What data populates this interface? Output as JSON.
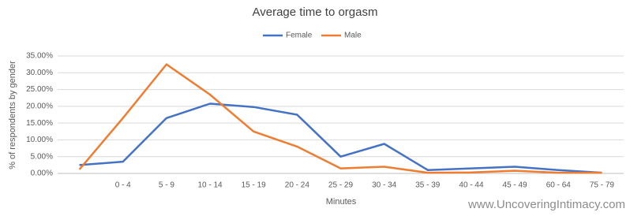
{
  "chart_data": {
    "type": "line",
    "title": "Average time to orgasm",
    "x_label": "Minutes",
    "y_label": "% of respondents by gender",
    "watermark": "www.UncoveringIntimacy.com",
    "categories": [
      null,
      "0 - 4",
      "5 - 9",
      "10 - 14",
      "15 - 19",
      "20 - 24",
      "25 - 29",
      "30 - 34",
      "35 - 39",
      "40 - 44",
      "45 - 49",
      "60 - 64",
      "75 - 79"
    ],
    "series": [
      {
        "name": "Female",
        "color": "#4472c4",
        "values": [
          2.5,
          3.5,
          16.5,
          20.8,
          19.8,
          17.5,
          5.0,
          8.8,
          1.0,
          1.5,
          2.0,
          1.0,
          0.2
        ]
      },
      {
        "name": "Male",
        "color": "#ed7d31",
        "values": [
          1.2,
          16.5,
          32.5,
          23.5,
          12.5,
          8.0,
          1.5,
          2.0,
          0.2,
          0.3,
          0.8,
          0.2,
          0.2
        ]
      }
    ],
    "ylim": [
      0,
      35
    ],
    "yticks": [
      {
        "value": 0,
        "label": "0.00%"
      },
      {
        "value": 5,
        "label": "5.00%"
      },
      {
        "value": 10,
        "label": "10.00%"
      },
      {
        "value": 15,
        "label": "15.00%"
      },
      {
        "value": 20,
        "label": "20.00%"
      },
      {
        "value": 25,
        "label": "25.00%"
      },
      {
        "value": 30,
        "label": "30.00%"
      },
      {
        "value": 35,
        "label": "35.00%"
      }
    ],
    "grid": true,
    "legend": "top"
  }
}
